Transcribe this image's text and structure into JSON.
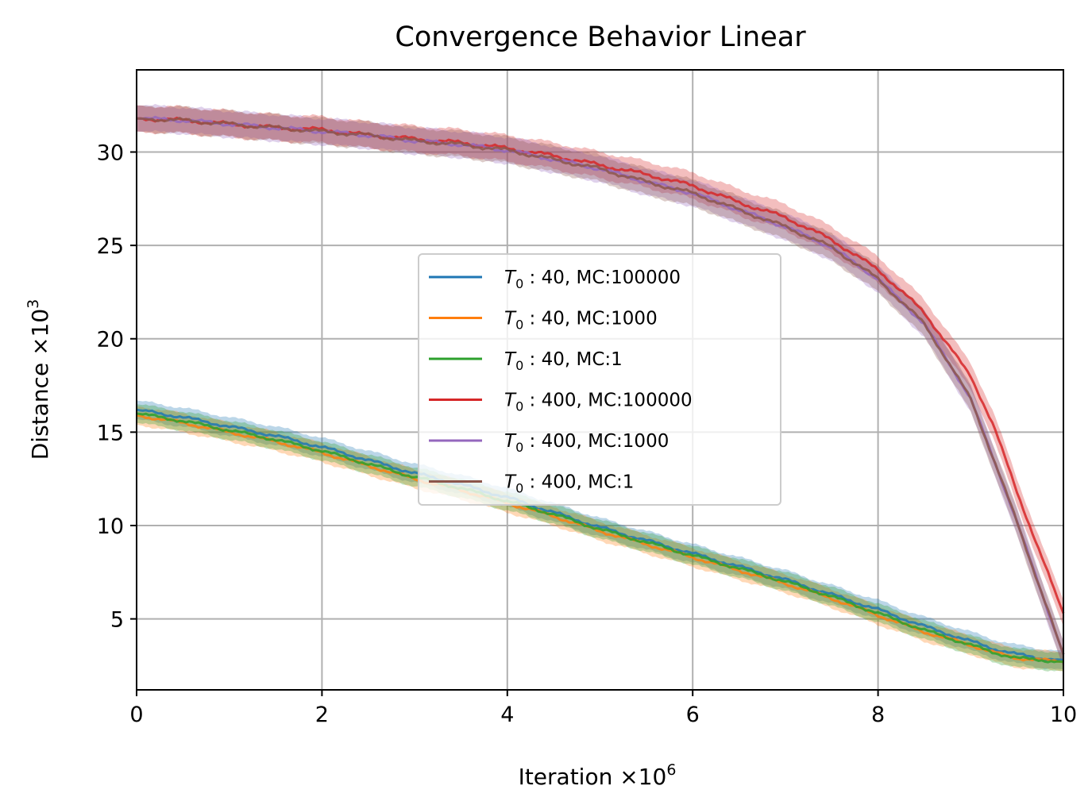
{
  "chart_data": {
    "type": "line",
    "title": "Convergence Behavior Linear",
    "xlabel": {
      "base": "Iteration ×10",
      "exp": "6"
    },
    "ylabel": {
      "base": "Distance ×10",
      "exp": "3"
    },
    "xlim": [
      0,
      10
    ],
    "ylim": [
      1.2,
      34.4
    ],
    "xticks": [
      0,
      2,
      4,
      6,
      8,
      10
    ],
    "yticks": [
      5,
      10,
      15,
      20,
      25,
      30
    ],
    "grid": true,
    "legend_position": "center",
    "x": [
      0,
      0.5,
      1,
      1.5,
      2,
      2.5,
      3,
      3.5,
      4,
      4.5,
      5,
      5.5,
      6,
      6.5,
      7,
      7.5,
      8,
      8.5,
      9,
      9.25,
      9.5,
      9.75,
      10
    ],
    "series": [
      {
        "name": "T0:40, MC:100000",
        "T0": "40",
        "mc": "MC:100000",
        "color": "#1f77b4",
        "band": 0.5,
        "values": [
          16.2,
          15.8,
          15.3,
          14.8,
          14.2,
          13.5,
          12.8,
          12.2,
          11.5,
          10.7,
          9.9,
          9.2,
          8.5,
          7.8,
          7.1,
          6.3,
          5.5,
          4.6,
          3.8,
          3.4,
          3.1,
          2.9,
          2.8
        ]
      },
      {
        "name": "T0:40, MC:1000",
        "T0": "40",
        "mc": "MC:1000",
        "color": "#ff7f0e",
        "band": 0.5,
        "values": [
          15.9,
          15.5,
          15.0,
          14.5,
          13.9,
          13.2,
          12.5,
          11.9,
          11.2,
          10.5,
          9.7,
          9.0,
          8.3,
          7.6,
          6.9,
          6.1,
          5.2,
          4.3,
          3.6,
          3.2,
          2.9,
          2.8,
          2.7
        ]
      },
      {
        "name": "T0:40, MC:1",
        "T0": "40",
        "mc": "MC:1",
        "color": "#2ca02c",
        "band": 0.5,
        "values": [
          16.0,
          15.6,
          15.1,
          14.6,
          14.0,
          13.3,
          12.6,
          12.0,
          11.3,
          10.6,
          9.8,
          9.1,
          8.4,
          7.7,
          7.0,
          6.2,
          5.3,
          4.4,
          3.6,
          3.2,
          2.9,
          2.8,
          2.7
        ]
      },
      {
        "name": "T0:400, MC:100000",
        "T0": "400",
        "mc": "MC:100000",
        "color": "#d62728",
        "band": 0.7,
        "values": [
          31.8,
          31.7,
          31.5,
          31.3,
          31.2,
          30.9,
          30.7,
          30.5,
          30.2,
          29.8,
          29.3,
          28.8,
          28.2,
          27.3,
          26.5,
          25.3,
          23.7,
          21.4,
          18.0,
          15.3,
          11.8,
          8.5,
          5.3
        ]
      },
      {
        "name": "T0:400, MC:1000",
        "T0": "400",
        "mc": "MC:1000",
        "color": "#9467bd",
        "band": 0.7,
        "values": [
          31.8,
          31.7,
          31.5,
          31.3,
          31.1,
          30.9,
          30.6,
          30.4,
          30.1,
          29.6,
          29.1,
          28.4,
          27.8,
          26.9,
          26.0,
          24.9,
          23.2,
          20.8,
          16.8,
          13.5,
          10.2,
          6.6,
          3.1
        ]
      },
      {
        "name": "T0:400, MC:1",
        "T0": "400",
        "mc": "MC:1",
        "color": "#8c564b",
        "band": 0.7,
        "values": [
          31.8,
          31.7,
          31.5,
          31.3,
          31.1,
          30.9,
          30.6,
          30.4,
          30.1,
          29.6,
          29.1,
          28.4,
          27.8,
          26.9,
          26.0,
          24.9,
          23.2,
          20.8,
          16.8,
          13.5,
          10.2,
          6.6,
          3.1
        ]
      }
    ]
  }
}
